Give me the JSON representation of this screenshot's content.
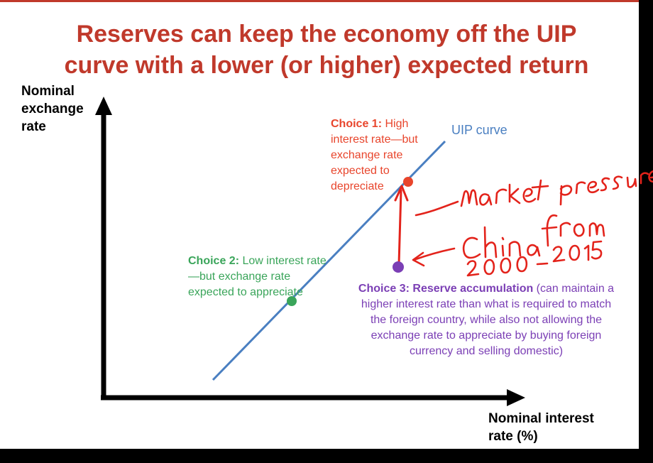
{
  "title": {
    "line1": "Reserves can keep the economy off the UIP",
    "line2": "curve with a lower (or higher) expected return"
  },
  "y_axis": {
    "line1": "Nominal",
    "line2": "exchange",
    "line3": "rate"
  },
  "x_axis": {
    "line1": "Nominal interest",
    "line2": "rate (%)"
  },
  "curve_label": "UIP curve",
  "choice1": {
    "heading": "Choice 1:",
    "text": " High interest rate—but exchange rate expected to depreciate"
  },
  "choice2": {
    "heading": "Choice 2:",
    "text": " Low interest rate—but exchange rate expected to appreciate"
  },
  "choice3": {
    "heading": "Choice 3: Reserve accumulation",
    "text": " (can maintain a higher interest rate than what is required to match the foreign country, while also not allowing the exchange rate to appreciate by buying foreign currency and selling domestic)"
  },
  "colors": {
    "title": "#c0392b",
    "choice1": "#e8452c",
    "choice2": "#3aa55a",
    "choice3": "#7b3fb5",
    "uip_curve": "#4a7fc1",
    "annotation": "#e3231b",
    "axis": "#000000"
  },
  "handwritten_notes": [
    "market pressure",
    "China from 2000-2015"
  ]
}
